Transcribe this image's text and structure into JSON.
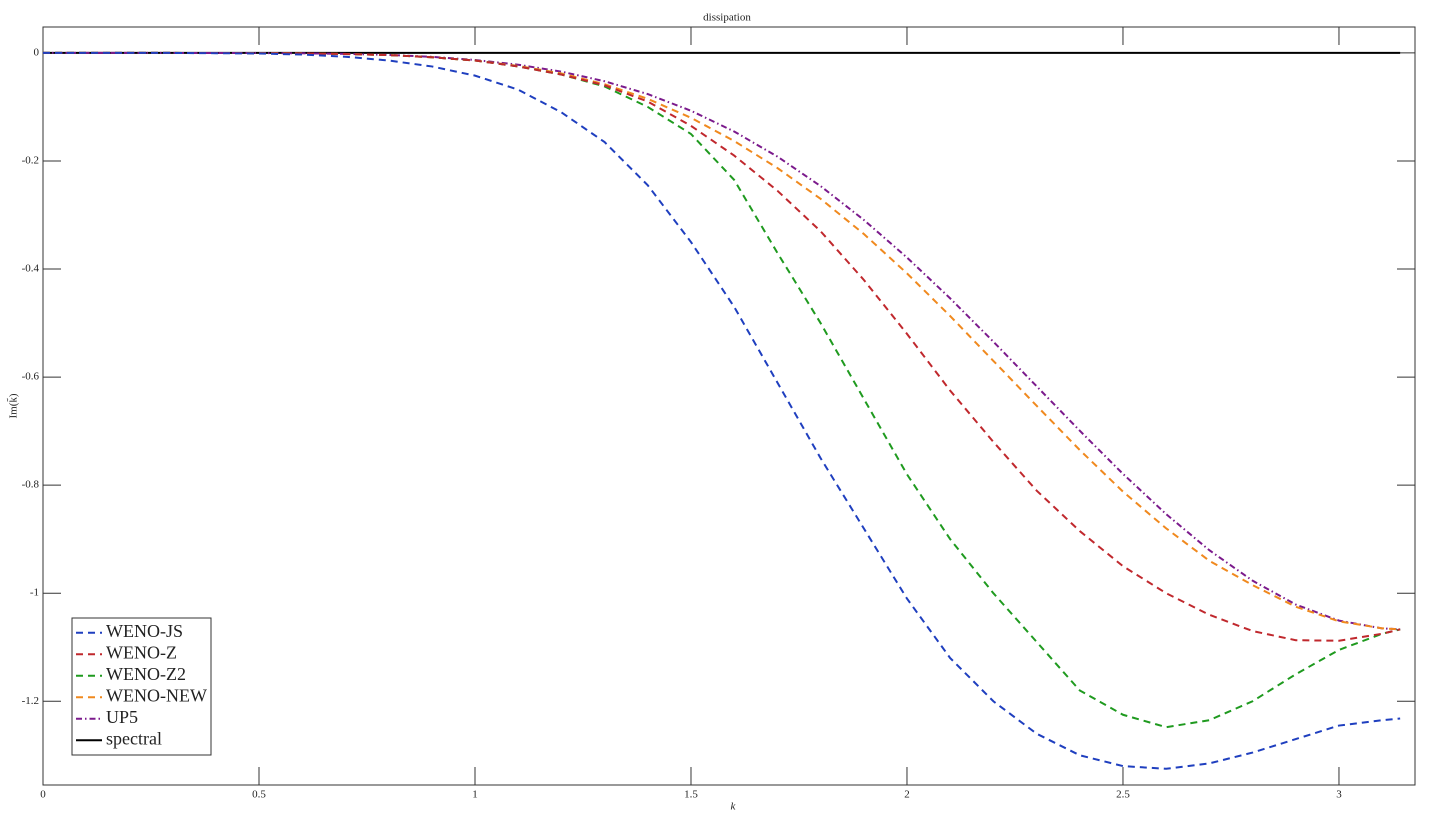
{
  "chart_data": {
    "type": "line",
    "title": "dissipation",
    "x_label": "k",
    "y_label": "Im(k̃)",
    "x": [
      0,
      0.1,
      0.2,
      0.3,
      0.4,
      0.5,
      0.6,
      0.7,
      0.8,
      0.9,
      1.0,
      1.1,
      1.2,
      1.3,
      1.4,
      1.5,
      1.6,
      1.7,
      1.8,
      1.9,
      2.0,
      2.1,
      2.2,
      2.3,
      2.4,
      2.5,
      2.6,
      2.7,
      2.8,
      2.9,
      3.0,
      3.1,
      3.1416
    ],
    "series": [
      {
        "name": "WENO-JS",
        "color": "#1f3fbf",
        "line_style": "dashed",
        "values": [
          0,
          0,
          0,
          0,
          -0.0005,
          -0.001,
          -0.003,
          -0.007,
          -0.014,
          -0.025,
          -0.042,
          -0.068,
          -0.11,
          -0.165,
          -0.245,
          -0.35,
          -0.47,
          -0.61,
          -0.75,
          -0.88,
          -1.01,
          -1.12,
          -1.2,
          -1.26,
          -1.3,
          -1.32,
          -1.325,
          -1.315,
          -1.295,
          -1.27,
          -1.245,
          -1.235,
          -1.232
        ]
      },
      {
        "name": "WENO-Z",
        "color": "#c0282d",
        "line_style": "dashed",
        "values": [
          0,
          0,
          0,
          0,
          -0.0001,
          -0.0003,
          -0.0008,
          -0.002,
          -0.004,
          -0.008,
          -0.014,
          -0.025,
          -0.04,
          -0.06,
          -0.09,
          -0.135,
          -0.19,
          -0.255,
          -0.33,
          -0.42,
          -0.52,
          -0.625,
          -0.72,
          -0.81,
          -0.885,
          -0.95,
          -1.0,
          -1.04,
          -1.07,
          -1.087,
          -1.088,
          -1.075,
          -1.067
        ]
      },
      {
        "name": "WENO-Z2",
        "color": "#1f9a1f",
        "line_style": "dashed",
        "values": [
          0,
          0,
          0,
          0,
          -0.0001,
          -0.0003,
          -0.0008,
          -0.002,
          -0.004,
          -0.008,
          -0.014,
          -0.025,
          -0.04,
          -0.062,
          -0.1,
          -0.15,
          -0.235,
          -0.37,
          -0.5,
          -0.64,
          -0.78,
          -0.9,
          -1.0,
          -1.09,
          -1.18,
          -1.225,
          -1.248,
          -1.235,
          -1.2,
          -1.15,
          -1.105,
          -1.075,
          -1.067
        ]
      },
      {
        "name": "WENO-NEW",
        "color": "#f0891e",
        "line_style": "dashed",
        "values": [
          0,
          0,
          0,
          0,
          -0.0001,
          -0.0003,
          -0.0008,
          -0.002,
          -0.004,
          -0.008,
          -0.014,
          -0.024,
          -0.038,
          -0.058,
          -0.085,
          -0.12,
          -0.163,
          -0.213,
          -0.27,
          -0.335,
          -0.408,
          -0.487,
          -0.57,
          -0.653,
          -0.735,
          -0.812,
          -0.88,
          -0.94,
          -0.985,
          -1.025,
          -1.052,
          -1.065,
          -1.067
        ]
      },
      {
        "name": "UP5",
        "color": "#7b1a8c",
        "line_style": "dashdot",
        "values": [
          0,
          0,
          0,
          0,
          -0.0001,
          -0.0002,
          -0.0007,
          -0.0017,
          -0.0037,
          -0.0072,
          -0.013,
          -0.0218,
          -0.0346,
          -0.0524,
          -0.0762,
          -0.107,
          -0.1454,
          -0.1918,
          -0.2464,
          -0.309,
          -0.3787,
          -0.4543,
          -0.5345,
          -0.6169,
          -0.6993,
          -0.7791,
          -0.8537,
          -0.9205,
          -0.9768,
          -1.021,
          -1.0507,
          -1.0652,
          -1.0667
        ]
      },
      {
        "name": "spectral",
        "color": "#000000",
        "line_style": "solid",
        "values": [
          0,
          0,
          0,
          0,
          0,
          0,
          0,
          0,
          0,
          0,
          0,
          0,
          0,
          0,
          0,
          0,
          0,
          0,
          0,
          0,
          0,
          0,
          0,
          0,
          0,
          0,
          0,
          0,
          0,
          0,
          0,
          0,
          0
        ]
      }
    ],
    "xlim": [
      0,
      3.176
    ],
    "ylim": [
      -1.355,
      0.048
    ],
    "xticks": [
      0,
      0.5,
      1,
      1.5,
      2,
      2.5,
      3
    ],
    "yticks": [
      0,
      -0.2,
      -0.4,
      -0.6,
      -0.8,
      -1,
      -1.2
    ],
    "grid": false,
    "legend_position": "lower left"
  }
}
